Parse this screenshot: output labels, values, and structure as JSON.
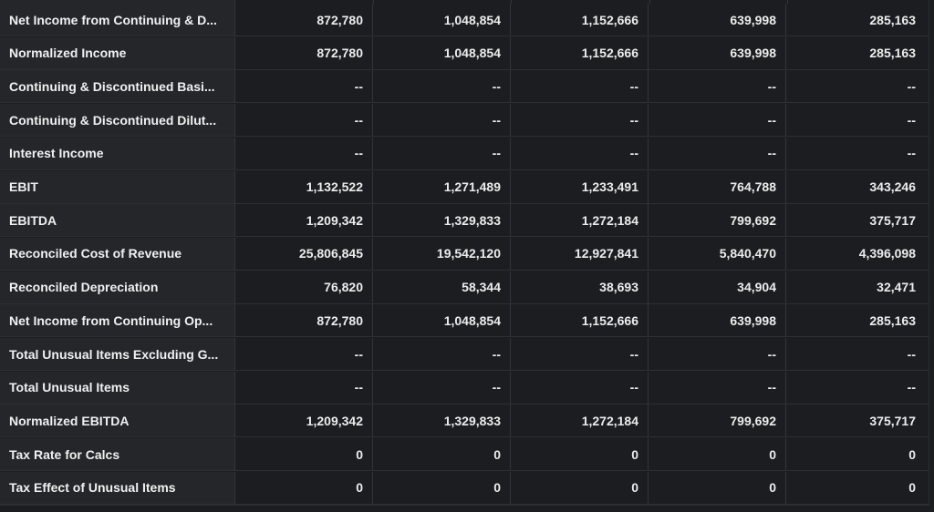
{
  "table": {
    "rows": [
      {
        "label": "Net Income from Continuing & D...",
        "values": [
          "872,780",
          "1,048,854",
          "1,152,666",
          "639,998",
          "285,163"
        ]
      },
      {
        "label": "Normalized Income",
        "values": [
          "872,780",
          "1,048,854",
          "1,152,666",
          "639,998",
          "285,163"
        ]
      },
      {
        "label": "Continuing & Discontinued Basi...",
        "values": [
          "--",
          "--",
          "--",
          "--",
          "--"
        ]
      },
      {
        "label": "Continuing & Discontinued Dilut...",
        "values": [
          "--",
          "--",
          "--",
          "--",
          "--"
        ]
      },
      {
        "label": "Interest Income",
        "values": [
          "--",
          "--",
          "--",
          "--",
          "--"
        ]
      },
      {
        "label": "EBIT",
        "values": [
          "1,132,522",
          "1,271,489",
          "1,233,491",
          "764,788",
          "343,246"
        ]
      },
      {
        "label": "EBITDA",
        "values": [
          "1,209,342",
          "1,329,833",
          "1,272,184",
          "799,692",
          "375,717"
        ]
      },
      {
        "label": "Reconciled Cost of Revenue",
        "values": [
          "25,806,845",
          "19,542,120",
          "12,927,841",
          "5,840,470",
          "4,396,098"
        ]
      },
      {
        "label": "Reconciled Depreciation",
        "values": [
          "76,820",
          "58,344",
          "38,693",
          "34,904",
          "32,471"
        ]
      },
      {
        "label": "Net Income from Continuing Op...",
        "values": [
          "872,780",
          "1,048,854",
          "1,152,666",
          "639,998",
          "285,163"
        ]
      },
      {
        "label": "Total Unusual Items Excluding G...",
        "values": [
          "--",
          "--",
          "--",
          "--",
          "--"
        ]
      },
      {
        "label": "Total Unusual Items",
        "values": [
          "--",
          "--",
          "--",
          "--",
          "--"
        ]
      },
      {
        "label": "Normalized EBITDA",
        "values": [
          "1,209,342",
          "1,329,833",
          "1,272,184",
          "799,692",
          "375,717"
        ]
      },
      {
        "label": "Tax Rate for Calcs",
        "values": [
          "0",
          "0",
          "0",
          "0",
          "0"
        ]
      },
      {
        "label": "Tax Effect of Unusual Items",
        "values": [
          "0",
          "0",
          "0",
          "0",
          "0"
        ]
      }
    ]
  },
  "colors": {
    "background": "#1c1d20",
    "label_column": "#24262a",
    "grid_line": "#34353a",
    "text": "#ececec"
  }
}
